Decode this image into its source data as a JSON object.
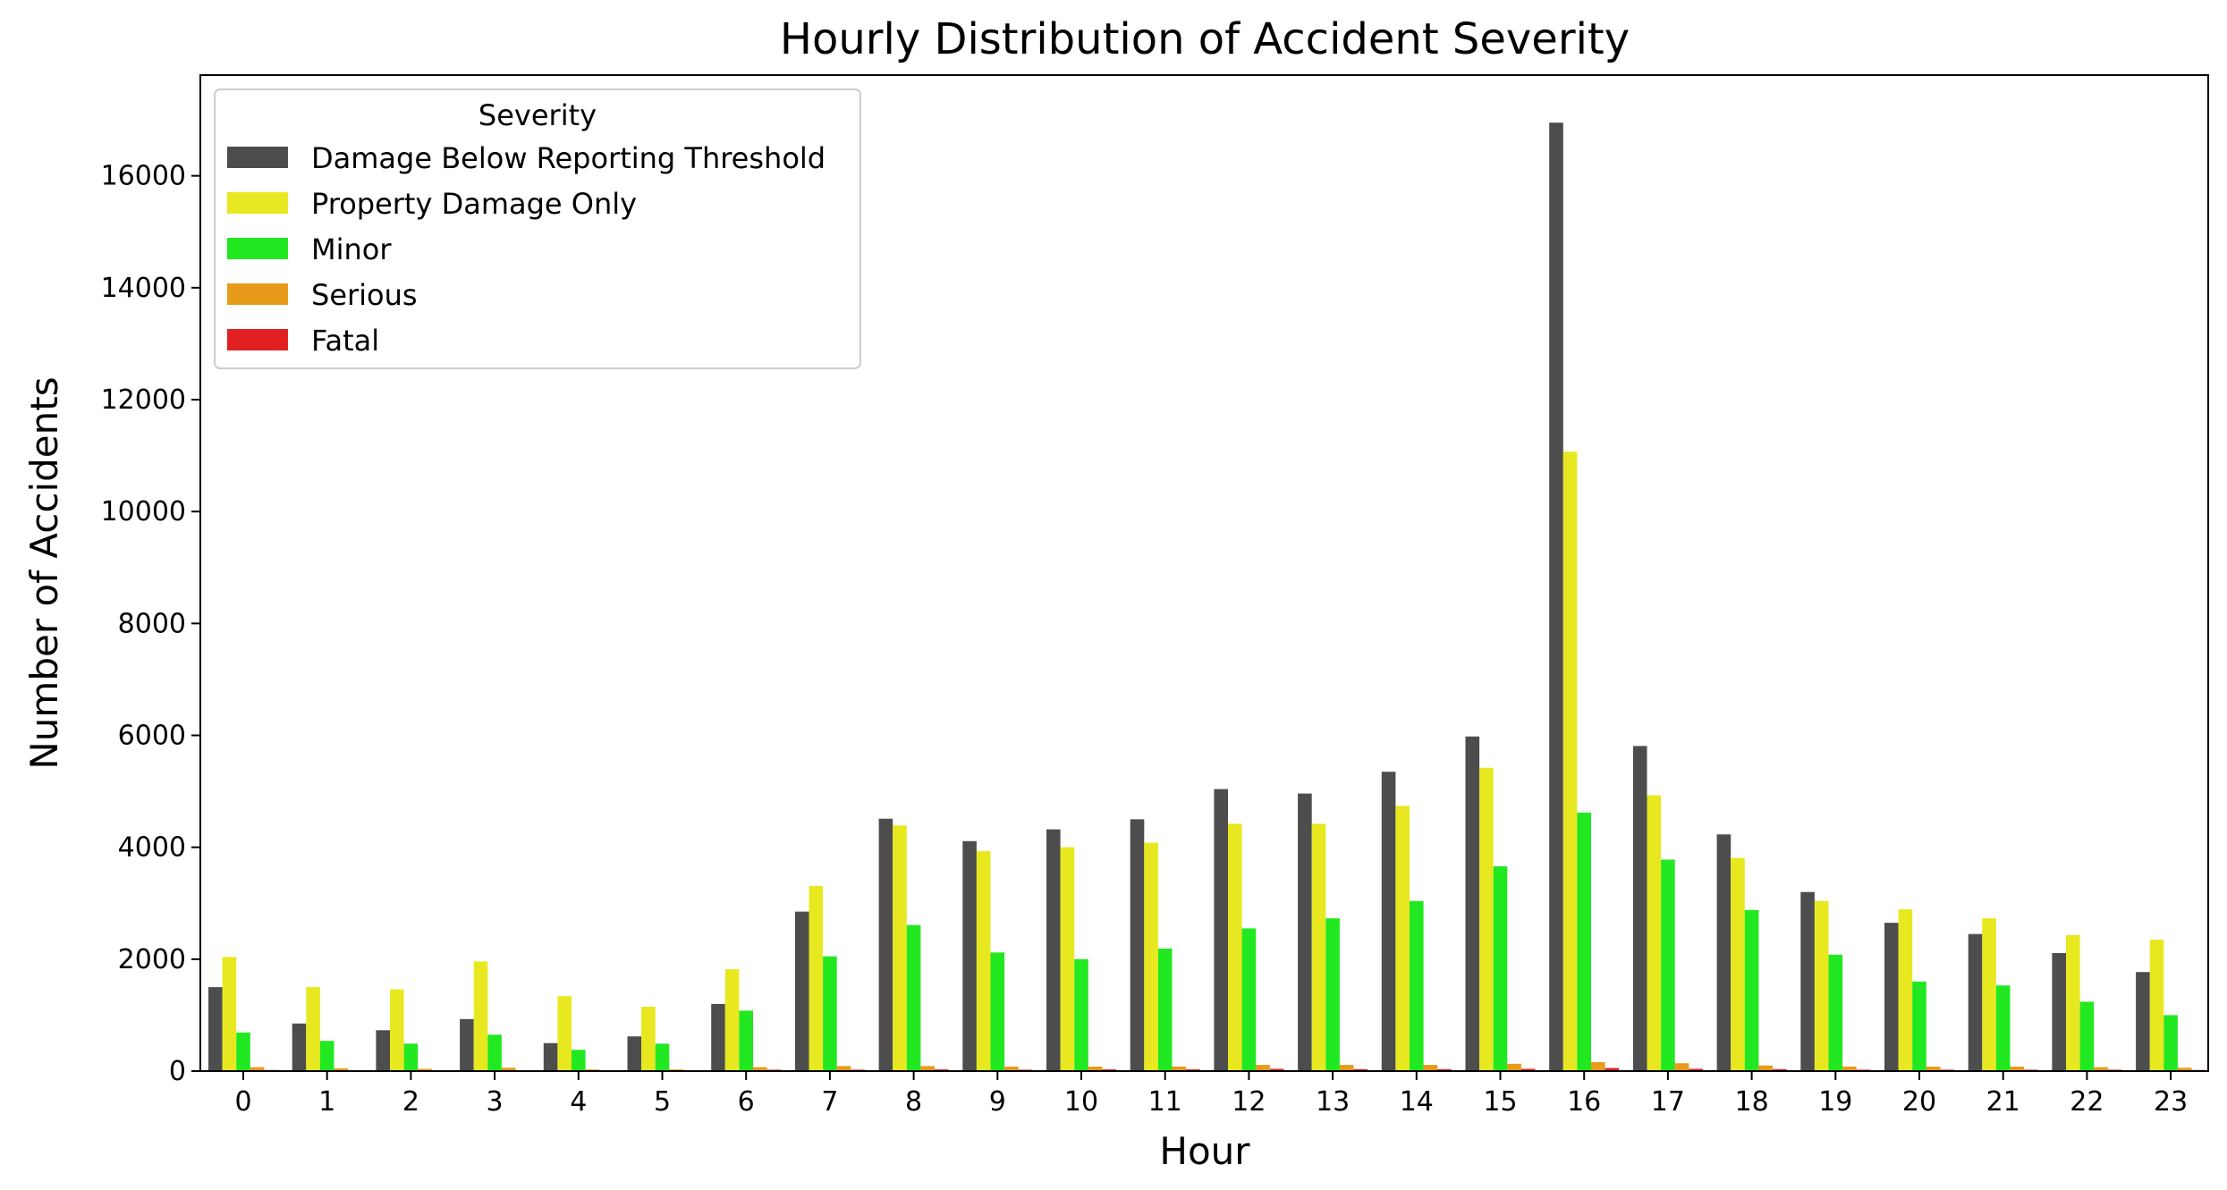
{
  "chart_data": {
    "type": "bar",
    "title": "Hourly Distribution of Accident Severity",
    "xlabel": "Hour",
    "ylabel": "Number of Accidents",
    "ylim": [
      0,
      17800
    ],
    "yticks": [
      0,
      2000,
      4000,
      6000,
      8000,
      10000,
      12000,
      14000,
      16000
    ],
    "grid": false,
    "legend": {
      "title": "Severity",
      "placement": "top-left"
    },
    "categories": [
      "0",
      "1",
      "2",
      "3",
      "4",
      "5",
      "6",
      "7",
      "8",
      "9",
      "10",
      "11",
      "12",
      "13",
      "14",
      "15",
      "16",
      "17",
      "18",
      "19",
      "20",
      "21",
      "22",
      "23"
    ],
    "series": [
      {
        "name": "Damage Below Reporting Threshold",
        "color": "#4d4d4d",
        "values": [
          1500,
          850,
          730,
          930,
          500,
          620,
          1200,
          2850,
          4510,
          4110,
          4320,
          4500,
          5040,
          4960,
          5350,
          5980,
          16950,
          5810,
          4230,
          3200,
          2650,
          2450,
          2110,
          1770
        ]
      },
      {
        "name": "Property Damage Only",
        "color": "#e8e820",
        "values": [
          2040,
          1500,
          1460,
          1960,
          1340,
          1150,
          1820,
          3310,
          4390,
          3930,
          4000,
          4080,
          4420,
          4420,
          4740,
          5420,
          11070,
          4930,
          3810,
          3040,
          2890,
          2730,
          2430,
          2350
        ]
      },
      {
        "name": "Minor",
        "color": "#22e822",
        "values": [
          690,
          540,
          490,
          650,
          380,
          490,
          1080,
          2050,
          2610,
          2120,
          2000,
          2190,
          2550,
          2730,
          3040,
          3660,
          4620,
          3780,
          2880,
          2080,
          1600,
          1530,
          1240,
          1000
        ]
      },
      {
        "name": "Serious",
        "color": "#e89a1a",
        "values": [
          70,
          50,
          40,
          60,
          30,
          30,
          70,
          90,
          90,
          80,
          80,
          80,
          110,
          110,
          110,
          130,
          160,
          140,
          100,
          80,
          80,
          80,
          70,
          60
        ]
      },
      {
        "name": "Fatal",
        "color": "#e02020",
        "values": [
          20,
          15,
          15,
          15,
          10,
          10,
          25,
          25,
          30,
          25,
          30,
          30,
          40,
          35,
          35,
          40,
          55,
          40,
          35,
          25,
          25,
          25,
          25,
          20
        ]
      }
    ]
  }
}
